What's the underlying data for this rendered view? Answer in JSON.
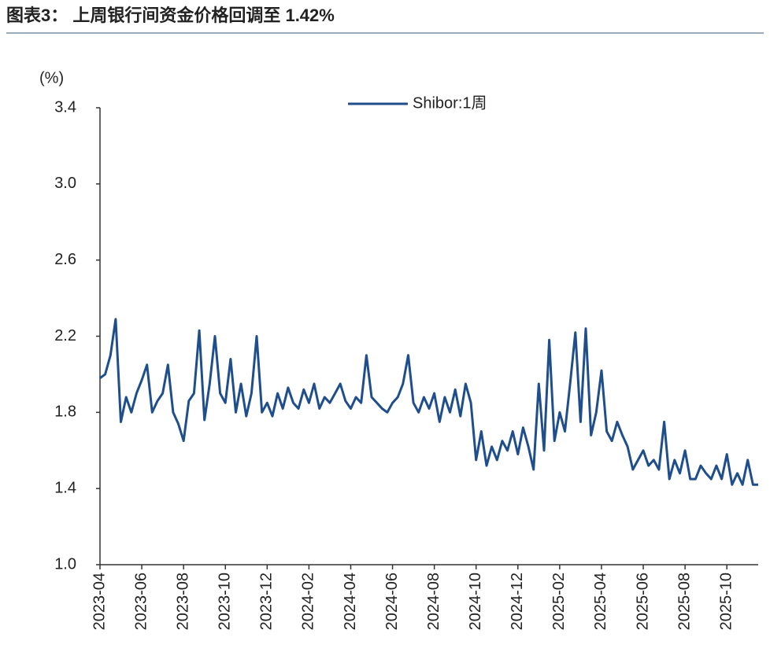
{
  "chart_data": {
    "type": "line",
    "title": "图表3： 上周银行间资金价格回调至 1.42%",
    "y_label": "(%)",
    "x": [
      0,
      0.25,
      0.5,
      0.75,
      1,
      1.25,
      1.5,
      1.75,
      2,
      2.25,
      2.5,
      2.75,
      3,
      3.25,
      3.5,
      3.75,
      4,
      4.25,
      4.5,
      4.75,
      5,
      5.25,
      5.5,
      5.75,
      6,
      6.25,
      6.5,
      6.75,
      7,
      7.25,
      7.5,
      7.75,
      8,
      8.25,
      8.5,
      8.75,
      9,
      9.25,
      9.5,
      9.75,
      10,
      10.25,
      10.5,
      10.75,
      11,
      11.25,
      11.5,
      11.75,
      12,
      12.25,
      12.5,
      12.75,
      13,
      13.25,
      13.5,
      13.75,
      14,
      14.25,
      14.5,
      14.75,
      15,
      15.25,
      15.5,
      15.75,
      16,
      16.25,
      16.5,
      16.75,
      17,
      17.25,
      17.5,
      17.75,
      18,
      18.25,
      18.5,
      18.75,
      19,
      19.25,
      19.5,
      19.75,
      20,
      20.25,
      20.5,
      20.75,
      21,
      21.25,
      21.5,
      21.75,
      22,
      22.25,
      22.5,
      22.75,
      23,
      23.25,
      23.5,
      23.75,
      24,
      24.25,
      24.5,
      24.75,
      25,
      25.25,
      25.5,
      25.75,
      26,
      26.25,
      26.5,
      26.75,
      27,
      27.25,
      27.5,
      27.75,
      28,
      28.25,
      28.5,
      28.75,
      29,
      29.25,
      29.5,
      29.75,
      30,
      30.25,
      30.5,
      30.75,
      31,
      31.25,
      31.5
    ],
    "series": [
      {
        "name": "Shibor:1周",
        "color": "#1f4e8c",
        "values": [
          1.98,
          2.0,
          2.1,
          2.29,
          1.75,
          1.88,
          1.8,
          1.9,
          1.97,
          2.05,
          1.8,
          1.86,
          1.9,
          2.05,
          1.8,
          1.74,
          1.65,
          1.86,
          1.9,
          2.23,
          1.76,
          1.95,
          2.2,
          1.9,
          1.85,
          2.08,
          1.8,
          1.95,
          1.78,
          1.9,
          2.2,
          1.8,
          1.85,
          1.78,
          1.9,
          1.82,
          1.93,
          1.85,
          1.82,
          1.92,
          1.85,
          1.95,
          1.82,
          1.88,
          1.85,
          1.9,
          1.95,
          1.86,
          1.82,
          1.88,
          1.85,
          2.1,
          1.88,
          1.85,
          1.82,
          1.8,
          1.85,
          1.88,
          1.95,
          2.1,
          1.85,
          1.8,
          1.88,
          1.82,
          1.9,
          1.75,
          1.88,
          1.8,
          1.92,
          1.78,
          1.95,
          1.85,
          1.55,
          1.7,
          1.52,
          1.62,
          1.55,
          1.65,
          1.6,
          1.7,
          1.58,
          1.72,
          1.62,
          1.5,
          1.95,
          1.6,
          2.18,
          1.65,
          1.8,
          1.7,
          1.95,
          2.22,
          1.75,
          2.24,
          1.68,
          1.8,
          2.02,
          1.7,
          1.65,
          1.75,
          1.68,
          1.62,
          1.5,
          1.55,
          1.6,
          1.52,
          1.55,
          1.5,
          1.75,
          1.45,
          1.55,
          1.48,
          1.6,
          1.45,
          1.45,
          1.52,
          1.48,
          1.45,
          1.52,
          1.45,
          1.58,
          1.42,
          1.48,
          1.42,
          1.55,
          1.42,
          1.42
        ]
      }
    ],
    "xlim": [
      0,
      31.5
    ],
    "xticks": [
      {
        "value": 0,
        "label": "2023-04"
      },
      {
        "value": 2,
        "label": "2023-06"
      },
      {
        "value": 4,
        "label": "2023-08"
      },
      {
        "value": 6,
        "label": "2023-10"
      },
      {
        "value": 8,
        "label": "2023-12"
      },
      {
        "value": 10,
        "label": "2024-02"
      },
      {
        "value": 12,
        "label": "2024-04"
      },
      {
        "value": 14,
        "label": "2024-06"
      },
      {
        "value": 16,
        "label": "2024-08"
      },
      {
        "value": 18,
        "label": "2024-10"
      },
      {
        "value": 20,
        "label": "2024-12"
      },
      {
        "value": 22,
        "label": "2025-02"
      },
      {
        "value": 24,
        "label": "2025-04"
      },
      {
        "value": 26,
        "label": "2025-06"
      },
      {
        "value": 28,
        "label": "2025-08"
      },
      {
        "value": 30,
        "label": "2025-10"
      }
    ],
    "ylim": [
      1.0,
      3.4
    ],
    "yticks": [
      {
        "value": 1.0,
        "label": "1.0"
      },
      1.4,
      1.8,
      2.2,
      2.6,
      {
        "value": 3.0,
        "label": "3.0"
      },
      3.4
    ]
  }
}
